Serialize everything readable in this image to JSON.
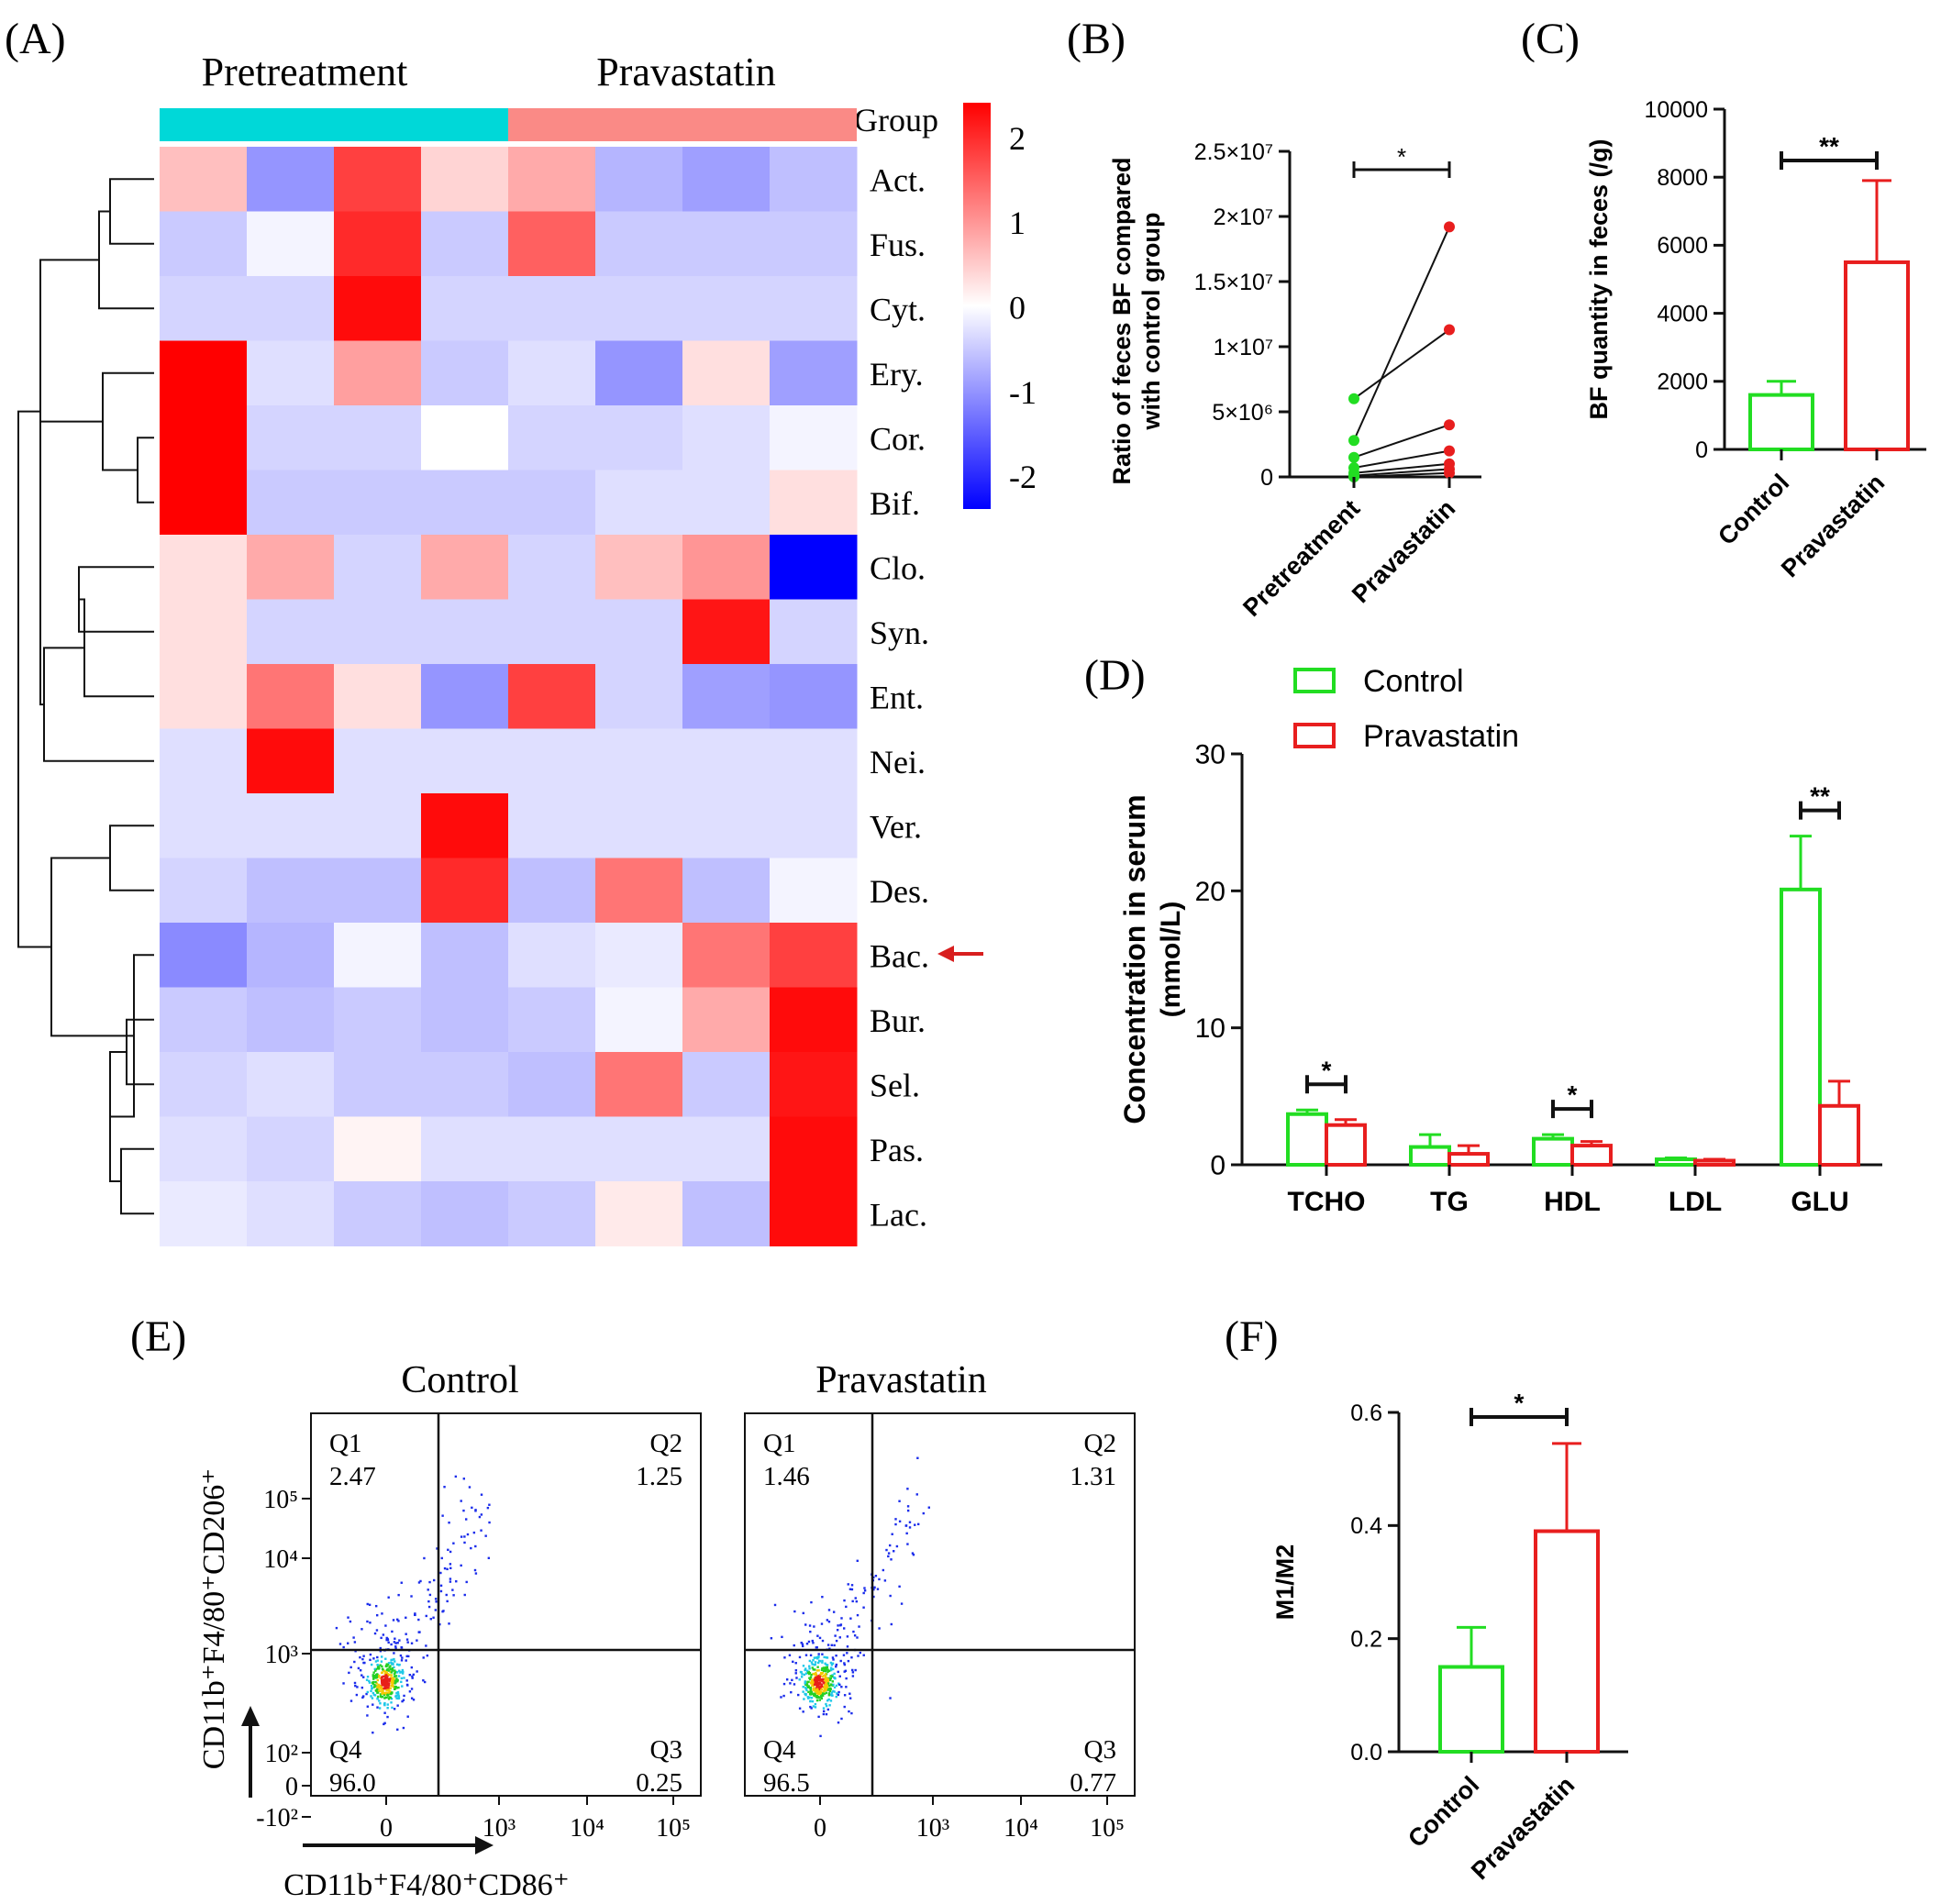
{
  "panels": {
    "A": "(A)",
    "B": "(B)",
    "C": "(C)",
    "D": "(D)",
    "E": "(E)",
    "F": "(F)"
  },
  "chart_data": [
    {
      "panel": "A",
      "type": "heatmap",
      "groups": [
        {
          "name": "Pretreatment",
          "color": "#00D8D8"
        },
        {
          "name": "Pravastatin",
          "color": "#FA8A86"
        }
      ],
      "group_label": "Group",
      "rows": [
        "Act.",
        "Fus.",
        "Cyt.",
        "Ery.",
        "Cor.",
        "Bif.",
        "Clo.",
        "Syn.",
        "Ent.",
        "Nei.",
        "Ver.",
        "Des.",
        "Bac.",
        "Bur.",
        "Sel.",
        "Pas.",
        "Lac."
      ],
      "highlight_row": "Bac.",
      "highlight_color": "#D81E1E",
      "values": [
        [
          0.6,
          -1.0,
          1.8,
          0.4,
          0.8,
          -0.7,
          -0.9,
          -0.6
        ],
        [
          -0.5,
          -0.1,
          2.0,
          -0.5,
          1.5,
          -0.5,
          -0.5,
          -0.5
        ],
        [
          -0.4,
          -0.4,
          2.3,
          -0.4,
          -0.4,
          -0.4,
          -0.4,
          -0.4
        ],
        [
          2.4,
          -0.3,
          0.9,
          -0.5,
          -0.3,
          -1.0,
          0.3,
          -0.9
        ],
        [
          2.4,
          -0.4,
          -0.4,
          0.0,
          -0.4,
          -0.4,
          -0.3,
          -0.1
        ],
        [
          2.4,
          -0.5,
          -0.5,
          -0.5,
          -0.5,
          -0.3,
          -0.3,
          0.3
        ],
        [
          0.3,
          0.8,
          -0.4,
          0.8,
          -0.4,
          0.6,
          1.0,
          -2.4
        ],
        [
          0.3,
          -0.4,
          -0.4,
          -0.4,
          -0.4,
          -0.4,
          2.2,
          -0.4
        ],
        [
          0.3,
          1.3,
          0.3,
          -1.0,
          1.8,
          -0.4,
          -0.9,
          -1.0
        ],
        [
          -0.3,
          2.3,
          -0.3,
          -0.3,
          -0.3,
          -0.3,
          -0.3,
          -0.3
        ],
        [
          -0.3,
          -0.3,
          -0.3,
          2.3,
          -0.3,
          -0.3,
          -0.3,
          -0.3
        ],
        [
          -0.4,
          -0.6,
          -0.6,
          2.0,
          -0.6,
          1.3,
          -0.6,
          -0.1
        ],
        [
          -1.1,
          -0.7,
          -0.1,
          -0.6,
          -0.3,
          -0.2,
          1.3,
          1.8
        ],
        [
          -0.5,
          -0.6,
          -0.5,
          -0.6,
          -0.5,
          -0.1,
          0.8,
          2.3
        ],
        [
          -0.4,
          -0.3,
          -0.5,
          -0.5,
          -0.6,
          1.3,
          -0.5,
          2.2
        ],
        [
          -0.3,
          -0.4,
          0.1,
          -0.3,
          -0.3,
          -0.3,
          -0.3,
          2.3
        ],
        [
          -0.2,
          -0.3,
          -0.5,
          -0.6,
          -0.5,
          0.2,
          -0.6,
          2.3
        ]
      ],
      "colorbar": {
        "ticks": [
          "2",
          "1",
          "0",
          "-1",
          "-2"
        ],
        "range": [
          -2.4,
          2.4
        ],
        "colors": [
          "#0000FF",
          "#FFFFFF",
          "#FF0000"
        ]
      }
    },
    {
      "panel": "B",
      "type": "scatter",
      "ylabel": "Ratio of feces BF compared with control group",
      "categories": [
        "Pretreatment",
        "Pravastatin"
      ],
      "yticks": [
        "0",
        "5×10⁶",
        "1×10⁷",
        "1.5×10⁷",
        "2×10⁷",
        "2.5×10⁷"
      ],
      "ylim": [
        0,
        25000000
      ],
      "pairs": [
        [
          6000000,
          11300000
        ],
        [
          2800000,
          19200000
        ],
        [
          1500000,
          4000000
        ],
        [
          700000,
          2000000
        ],
        [
          300000,
          1000000
        ],
        [
          100000,
          600000
        ],
        [
          0,
          300000
        ]
      ],
      "colors": {
        "Pretreatment": "#22DD22",
        "Pravastatin": "#E81E1E"
      },
      "significance": "*"
    },
    {
      "panel": "C",
      "type": "bar",
      "ylabel": "BF quantity in feces (/g)",
      "categories": [
        "Control",
        "Pravastatin"
      ],
      "values": [
        1600,
        5500
      ],
      "errors": [
        400,
        2400
      ],
      "ylim": [
        0,
        10000
      ],
      "yticks": [
        "0",
        "2000",
        "4000",
        "6000",
        "8000",
        "10000"
      ],
      "colors": [
        "#22DD22",
        "#E81E1E"
      ],
      "significance": "**"
    },
    {
      "panel": "D",
      "type": "bar",
      "ylabel": "Concentration in serum",
      "ylabel2": "(mmol/L)",
      "categories": [
        "TCHO",
        "TG",
        "HDL",
        "LDL",
        "GLU"
      ],
      "series": [
        {
          "name": "Control",
          "values": [
            3.7,
            1.3,
            1.9,
            0.4,
            20.1
          ],
          "errors": [
            0.3,
            0.9,
            0.3,
            0.1,
            3.9
          ],
          "color": "#22DD22"
        },
        {
          "name": "Pravastatin",
          "values": [
            2.9,
            0.8,
            1.4,
            0.3,
            4.3
          ],
          "errors": [
            0.4,
            0.6,
            0.3,
            0.1,
            1.8
          ],
          "color": "#E81E1E"
        }
      ],
      "ylim": [
        0,
        30
      ],
      "yticks": [
        "0",
        "10",
        "20",
        "30"
      ],
      "significance": [
        "*",
        "",
        "*",
        "",
        "**"
      ]
    },
    {
      "panel": "E",
      "type": "scatter",
      "plots": [
        {
          "title": "Control",
          "quadrants": {
            "Q1": "2.47",
            "Q2": "1.25",
            "Q3": "0.25",
            "Q4": "96.0"
          }
        },
        {
          "title": "Pravastatin",
          "quadrants": {
            "Q1": "1.46",
            "Q2": "1.31",
            "Q3": "0.77",
            "Q4": "96.5"
          }
        }
      ],
      "xlabel": "CD11b⁺F4/80⁺CD86⁺",
      "ylabel": "CD11b⁺F4/80⁺CD206⁺",
      "xticks": [
        "0",
        "10³",
        "10⁴",
        "10⁵"
      ],
      "yticks": [
        "10⁵",
        "10⁴",
        "10³",
        "10²",
        "0",
        "-10²"
      ]
    },
    {
      "panel": "F",
      "type": "bar",
      "ylabel": "M1/M2",
      "categories": [
        "Control",
        "Pravastatin"
      ],
      "values": [
        0.15,
        0.39
      ],
      "errors": [
        0.07,
        0.155
      ],
      "ylim": [
        0,
        0.6
      ],
      "yticks": [
        "0.0",
        "0.2",
        "0.4",
        "0.6"
      ],
      "colors": [
        "#22DD22",
        "#E81E1E"
      ],
      "significance": "*"
    }
  ]
}
